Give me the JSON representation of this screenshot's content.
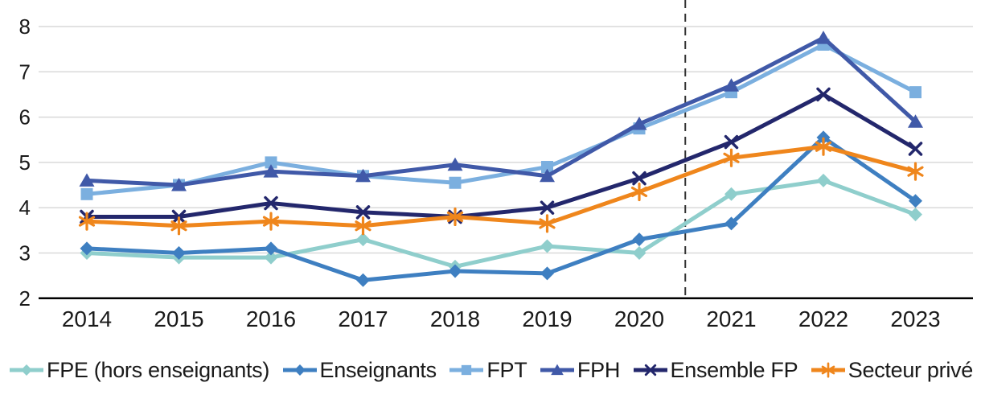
{
  "chart_data": {
    "type": "line",
    "title": "",
    "xlabel": "",
    "ylabel": "",
    "categories": [
      "2014",
      "2015",
      "2016",
      "2017",
      "2018",
      "2019",
      "2020",
      "2021",
      "2022",
      "2023"
    ],
    "series": [
      {
        "name": "FPE (hors enseignants)",
        "color": "#8FCECC",
        "marker": "diamond",
        "values": [
          3.0,
          2.9,
          2.9,
          3.3,
          2.7,
          3.15,
          3.0,
          4.3,
          4.6,
          3.85
        ]
      },
      {
        "name": "Enseignants",
        "color": "#3E7FC1",
        "marker": "diamond",
        "values": [
          3.1,
          3.0,
          3.1,
          2.4,
          2.6,
          2.55,
          3.3,
          3.65,
          5.55,
          4.15
        ]
      },
      {
        "name": "FPT",
        "color": "#7BAFDF",
        "marker": "square",
        "values": [
          4.3,
          4.5,
          5.0,
          4.7,
          4.55,
          4.9,
          5.75,
          6.55,
          7.6,
          6.55
        ]
      },
      {
        "name": "FPH",
        "color": "#4059A8",
        "marker": "triangle",
        "values": [
          4.6,
          4.5,
          4.8,
          4.7,
          4.95,
          4.7,
          5.85,
          6.7,
          7.75,
          5.9
        ]
      },
      {
        "name": "Ensemble FP",
        "color": "#23276C",
        "marker": "x",
        "values": [
          3.8,
          3.8,
          4.1,
          3.9,
          3.8,
          4.0,
          4.65,
          5.45,
          6.5,
          5.3
        ]
      },
      {
        "name": "Secteur privé",
        "color": "#EF861C",
        "marker": "asterisk",
        "values": [
          3.7,
          3.6,
          3.7,
          3.6,
          3.8,
          3.65,
          4.35,
          5.1,
          5.35,
          4.8
        ]
      }
    ],
    "yticks": [
      2,
      3,
      4,
      5,
      6,
      7,
      8
    ],
    "ylim": [
      2,
      8.6
    ],
    "grid": true,
    "legend_position": "bottom",
    "annotation": {
      "type": "dashed-vertical-line",
      "x_index": 6.5,
      "between": [
        "2020",
        "2021"
      ]
    }
  },
  "colors": {
    "grid": "#d9d9d9",
    "axis": "#000000",
    "dashed_line": "#333333",
    "tick_text": "#1a1a1a",
    "background": "#ffffff"
  }
}
